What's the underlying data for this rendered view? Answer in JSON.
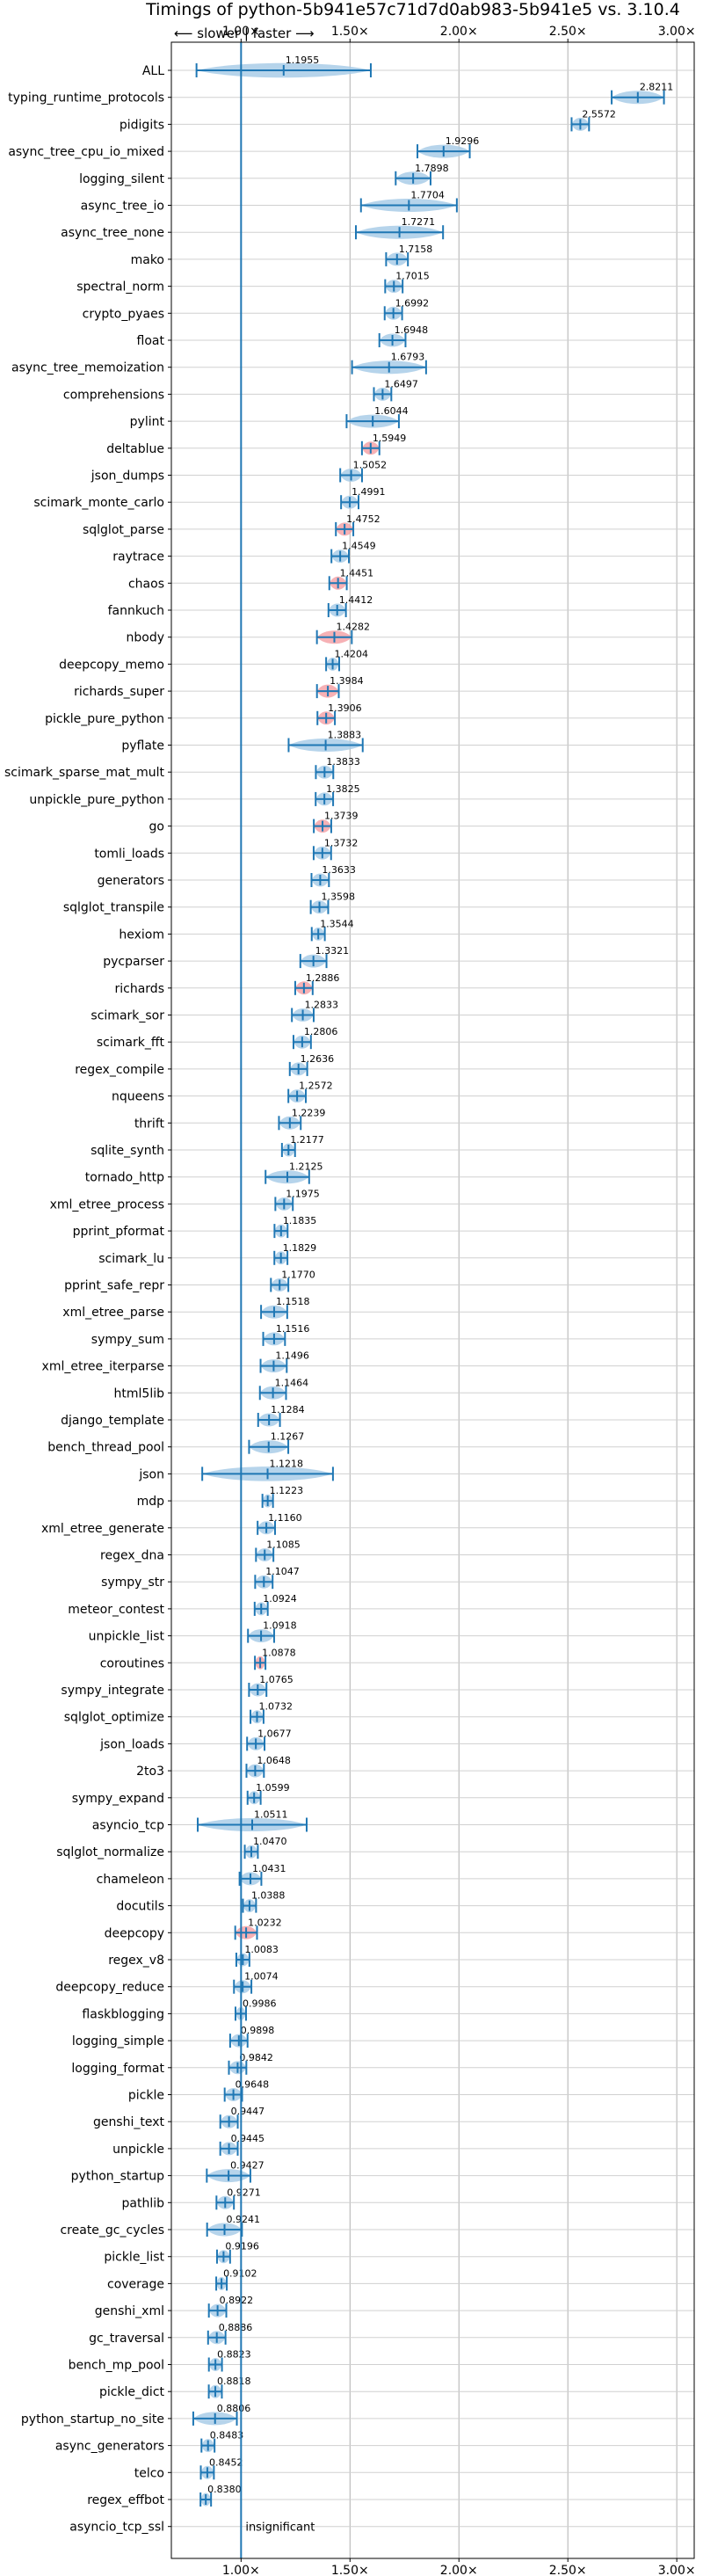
{
  "chart_data": {
    "type": "violin",
    "title": "Timings of python-5b941e57c71d7d0ab983-5b941e5 vs. 3.10.4",
    "direction_label": "⟵ slower | faster ⟶",
    "x_ticks": [
      "1.00×",
      "1.50×",
      "2.00×",
      "2.50×",
      "3.00×"
    ],
    "x_tick_values": [
      1.0,
      1.5,
      2.0,
      2.5,
      3.0
    ],
    "xlim": [
      0.68,
      3.08
    ],
    "reference_line": 1.0,
    "grid": true,
    "insignificant_label": "insignificant",
    "benchmarks": [
      {
        "name": "ALL",
        "value": 1.1955,
        "spread": 0.4,
        "wide": true
      },
      {
        "name": "typing_runtime_protocols",
        "value": 2.8211,
        "spread": 0.12
      },
      {
        "name": "pidigits",
        "value": 2.5572,
        "spread": 0.04
      },
      {
        "name": "async_tree_cpu_io_mixed",
        "value": 1.9296,
        "spread": 0.12
      },
      {
        "name": "logging_silent",
        "value": 1.7898,
        "spread": 0.08
      },
      {
        "name": "async_tree_io",
        "value": 1.7704,
        "spread": 0.22
      },
      {
        "name": "async_tree_none",
        "value": 1.7271,
        "spread": 0.2
      },
      {
        "name": "mako",
        "value": 1.7158,
        "spread": 0.05
      },
      {
        "name": "spectral_norm",
        "value": 1.7015,
        "spread": 0.04
      },
      {
        "name": "crypto_pyaes",
        "value": 1.6992,
        "spread": 0.04
      },
      {
        "name": "float",
        "value": 1.6948,
        "spread": 0.06
      },
      {
        "name": "async_tree_memoization",
        "value": 1.6793,
        "spread": 0.17
      },
      {
        "name": "comprehensions",
        "value": 1.6497,
        "spread": 0.04
      },
      {
        "name": "pylint",
        "value": 1.6044,
        "spread": 0.12
      },
      {
        "name": "deltablue",
        "value": 1.5949,
        "spread": 0.04,
        "red": true
      },
      {
        "name": "json_dumps",
        "value": 1.5052,
        "spread": 0.05
      },
      {
        "name": "scimark_monte_carlo",
        "value": 1.4991,
        "spread": 0.04
      },
      {
        "name": "sqlglot_parse",
        "value": 1.4752,
        "spread": 0.04,
        "red": true
      },
      {
        "name": "raytrace",
        "value": 1.4549,
        "spread": 0.04
      },
      {
        "name": "chaos",
        "value": 1.4451,
        "spread": 0.04,
        "red": true
      },
      {
        "name": "fannkuch",
        "value": 1.4412,
        "spread": 0.04
      },
      {
        "name": "nbody",
        "value": 1.4282,
        "spread": 0.08,
        "red": true
      },
      {
        "name": "deepcopy_memo",
        "value": 1.4204,
        "spread": 0.03
      },
      {
        "name": "richards_super",
        "value": 1.3984,
        "spread": 0.05,
        "red": true
      },
      {
        "name": "pickle_pure_python",
        "value": 1.3906,
        "spread": 0.04,
        "red": true
      },
      {
        "name": "pyflate",
        "value": 1.3883,
        "spread": 0.17
      },
      {
        "name": "scimark_sparse_mat_mult",
        "value": 1.3833,
        "spread": 0.04
      },
      {
        "name": "unpickle_pure_python",
        "value": 1.3825,
        "spread": 0.04
      },
      {
        "name": "go",
        "value": 1.3739,
        "spread": 0.04,
        "red": true
      },
      {
        "name": "tomli_loads",
        "value": 1.3732,
        "spread": 0.04
      },
      {
        "name": "generators",
        "value": 1.3633,
        "spread": 0.04
      },
      {
        "name": "sqlglot_transpile",
        "value": 1.3598,
        "spread": 0.04
      },
      {
        "name": "hexiom",
        "value": 1.3544,
        "spread": 0.03
      },
      {
        "name": "pycparser",
        "value": 1.3321,
        "spread": 0.06
      },
      {
        "name": "richards",
        "value": 1.2886,
        "spread": 0.04,
        "red": true
      },
      {
        "name": "scimark_sor",
        "value": 1.2833,
        "spread": 0.05
      },
      {
        "name": "scimark_fft",
        "value": 1.2806,
        "spread": 0.04
      },
      {
        "name": "regex_compile",
        "value": 1.2636,
        "spread": 0.04
      },
      {
        "name": "nqueens",
        "value": 1.2572,
        "spread": 0.04
      },
      {
        "name": "thrift",
        "value": 1.2239,
        "spread": 0.05
      },
      {
        "name": "sqlite_synth",
        "value": 1.2177,
        "spread": 0.03
      },
      {
        "name": "tornado_http",
        "value": 1.2125,
        "spread": 0.1
      },
      {
        "name": "xml_etree_process",
        "value": 1.1975,
        "spread": 0.04
      },
      {
        "name": "pprint_pformat",
        "value": 1.1835,
        "spread": 0.03
      },
      {
        "name": "scimark_lu",
        "value": 1.1829,
        "spread": 0.03
      },
      {
        "name": "pprint_safe_repr",
        "value": 1.177,
        "spread": 0.04
      },
      {
        "name": "xml_etree_parse",
        "value": 1.1518,
        "spread": 0.06
      },
      {
        "name": "sympy_sum",
        "value": 1.1516,
        "spread": 0.05
      },
      {
        "name": "xml_etree_iterparse",
        "value": 1.1496,
        "spread": 0.06
      },
      {
        "name": "html5lib",
        "value": 1.1464,
        "spread": 0.06
      },
      {
        "name": "django_template",
        "value": 1.1284,
        "spread": 0.05
      },
      {
        "name": "bench_thread_pool",
        "value": 1.1267,
        "spread": 0.09
      },
      {
        "name": "json",
        "value": 1.1218,
        "spread": 0.3,
        "wide": true
      },
      {
        "name": "mdp",
        "value": 1.1223,
        "spread": 0.02
      },
      {
        "name": "xml_etree_generate",
        "value": 1.116,
        "spread": 0.04
      },
      {
        "name": "regex_dna",
        "value": 1.1085,
        "spread": 0.04
      },
      {
        "name": "sympy_str",
        "value": 1.1047,
        "spread": 0.04
      },
      {
        "name": "meteor_contest",
        "value": 1.0924,
        "spread": 0.03
      },
      {
        "name": "unpickle_list",
        "value": 1.0918,
        "spread": 0.06
      },
      {
        "name": "coroutines",
        "value": 1.0878,
        "spread": 0.02,
        "red": true
      },
      {
        "name": "sympy_integrate",
        "value": 1.0765,
        "spread": 0.04
      },
      {
        "name": "sqlglot_optimize",
        "value": 1.0732,
        "spread": 0.03
      },
      {
        "name": "json_loads",
        "value": 1.0677,
        "spread": 0.04
      },
      {
        "name": "2to3",
        "value": 1.0648,
        "spread": 0.04
      },
      {
        "name": "sympy_expand",
        "value": 1.0599,
        "spread": 0.03
      },
      {
        "name": "asyncio_tcp",
        "value": 1.0511,
        "spread": 0.25
      },
      {
        "name": "sqlglot_normalize",
        "value": 1.047,
        "spread": 0.03
      },
      {
        "name": "chameleon",
        "value": 1.0431,
        "spread": 0.05
      },
      {
        "name": "docutils",
        "value": 1.0388,
        "spread": 0.03
      },
      {
        "name": "deepcopy",
        "value": 1.0232,
        "spread": 0.05,
        "red": true
      },
      {
        "name": "regex_v8",
        "value": 1.0083,
        "spread": 0.03
      },
      {
        "name": "deepcopy_reduce",
        "value": 1.0074,
        "spread": 0.04
      },
      {
        "name": "flaskblogging",
        "value": 0.9986,
        "spread": 0.02
      },
      {
        "name": "logging_simple",
        "value": 0.9898,
        "spread": 0.04
      },
      {
        "name": "logging_format",
        "value": 0.9842,
        "spread": 0.04
      },
      {
        "name": "pickle",
        "value": 0.9648,
        "spread": 0.04
      },
      {
        "name": "genshi_text",
        "value": 0.9447,
        "spread": 0.04
      },
      {
        "name": "unpickle",
        "value": 0.9445,
        "spread": 0.04
      },
      {
        "name": "python_startup",
        "value": 0.9427,
        "spread": 0.1
      },
      {
        "name": "pathlib",
        "value": 0.9271,
        "spread": 0.04
      },
      {
        "name": "create_gc_cycles",
        "value": 0.9241,
        "spread": 0.08
      },
      {
        "name": "pickle_list",
        "value": 0.9196,
        "spread": 0.03
      },
      {
        "name": "coverage",
        "value": 0.9102,
        "spread": 0.02
      },
      {
        "name": "genshi_xml",
        "value": 0.8922,
        "spread": 0.04
      },
      {
        "name": "gc_traversal",
        "value": 0.8886,
        "spread": 0.04
      },
      {
        "name": "bench_mp_pool",
        "value": 0.8823,
        "spread": 0.03
      },
      {
        "name": "pickle_dict",
        "value": 0.8818,
        "spread": 0.03
      },
      {
        "name": "python_startup_no_site",
        "value": 0.8806,
        "spread": 0.1
      },
      {
        "name": "async_generators",
        "value": 0.8483,
        "spread": 0.03
      },
      {
        "name": "telco",
        "value": 0.8452,
        "spread": 0.03
      },
      {
        "name": "regex_effbot",
        "value": 0.838,
        "spread": 0.02
      },
      {
        "name": "asyncio_tcp_ssl",
        "value": null,
        "spread": 0,
        "insignificant": true
      }
    ]
  }
}
